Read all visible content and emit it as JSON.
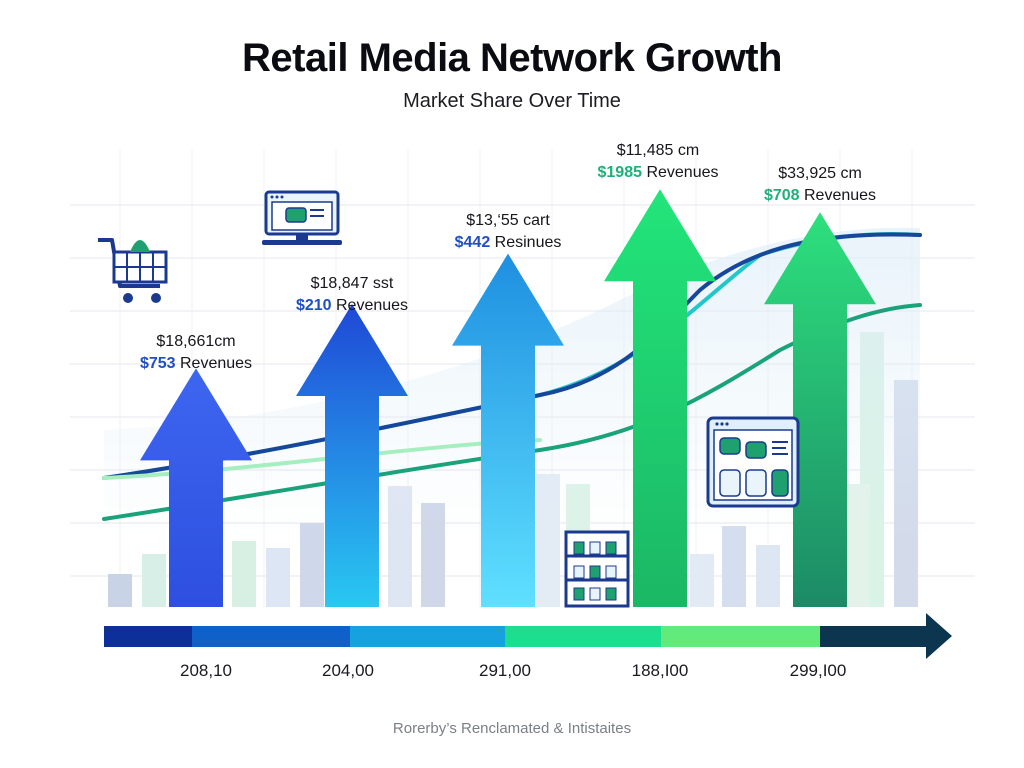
{
  "chart_data": {
    "type": "bar",
    "title": "Retail Media Network Growth",
    "subtitle": "Market Share Over Time",
    "categories": [
      "208,10",
      "204,00",
      "291,00",
      "188,I00",
      "299,I00"
    ],
    "arrow_heights": [
      0.52,
      0.66,
      0.77,
      0.91,
      0.86
    ],
    "annotations": [
      {
        "amount": "$18,661cm",
        "value": "$753",
        "label": "Revenues",
        "color": "#1f4fc2"
      },
      {
        "amount": "$18,847 sst",
        "value": "$210",
        "label": "Revenues",
        "color": "#1f4fc2"
      },
      {
        "amount": "$13,‘55 cart",
        "value": "$442",
        "label": "Resinues",
        "color": "#1f4fc2"
      },
      {
        "amount": "$11,485 cm",
        "value": "$1985",
        "label": "Revenues",
        "color": "#1fb07a"
      },
      {
        "amount": "$33,925 cm",
        "value": "$708",
        "label": "Revenues",
        "color": "#1fb07a"
      }
    ],
    "source": "Rorerby’s Renclamated & Intistaites",
    "colors": {
      "arrow_1": [
        "#3d66f0",
        "#2e4fe0"
      ],
      "arrow_2": [
        "#1f48d6",
        "#29c8f2"
      ],
      "arrow_3": [
        "#1e8fe0",
        "#5fe0ff"
      ],
      "arrow_4": [
        "#22e57a",
        "#1bb765"
      ],
      "arrow_5": [
        "#2de07d",
        "#1c8a66"
      ],
      "timeline": [
        "#0d2f9a",
        "#0f60c9",
        "#17a2df",
        "#1dde8f",
        "#62ea7a",
        "#0c3550"
      ],
      "line_blue": "#17479b",
      "line_green": "#1aa37a"
    },
    "icons": [
      "shopping-cart-icon",
      "laptop-icon",
      "shelf-icon",
      "product-display-icon"
    ]
  }
}
